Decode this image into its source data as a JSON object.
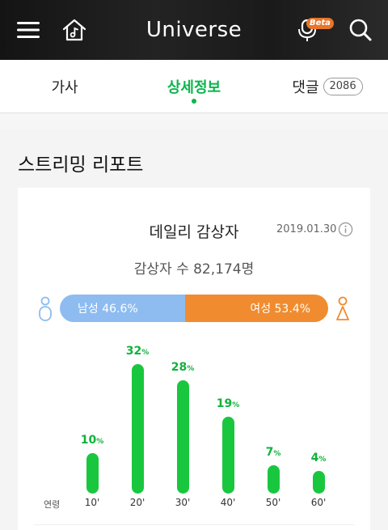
{
  "header": {
    "title": "Universe",
    "beta_badge": "Beta"
  },
  "tabs": [
    {
      "label": "가사"
    },
    {
      "label": "상세정보"
    },
    {
      "label": "댓글",
      "count": "2086"
    }
  ],
  "section": {
    "title": "스트리밍 리포트"
  },
  "card": {
    "title": "데일리 감상자",
    "date": "2019.01.30",
    "listeners": "감상자 수 82,174명"
  },
  "gender": {
    "male_label": "남성 46.6%",
    "female_label": "여성 53.4%",
    "male_percent": 46.6,
    "female_percent": 53.4,
    "male_color": "#8ebcf0",
    "female_color": "#f08c2f"
  },
  "chart_data": {
    "type": "bar",
    "xlabel": "연령",
    "categories": [
      "10'",
      "20'",
      "30'",
      "40'",
      "50'",
      "60'"
    ],
    "values": [
      10,
      32,
      28,
      19,
      7,
      4
    ],
    "value_labels": [
      "10",
      "32",
      "28",
      "19",
      "7",
      "4"
    ],
    "unit": "%",
    "bar_color": "#19c73e",
    "label_color": "#10b23c"
  }
}
